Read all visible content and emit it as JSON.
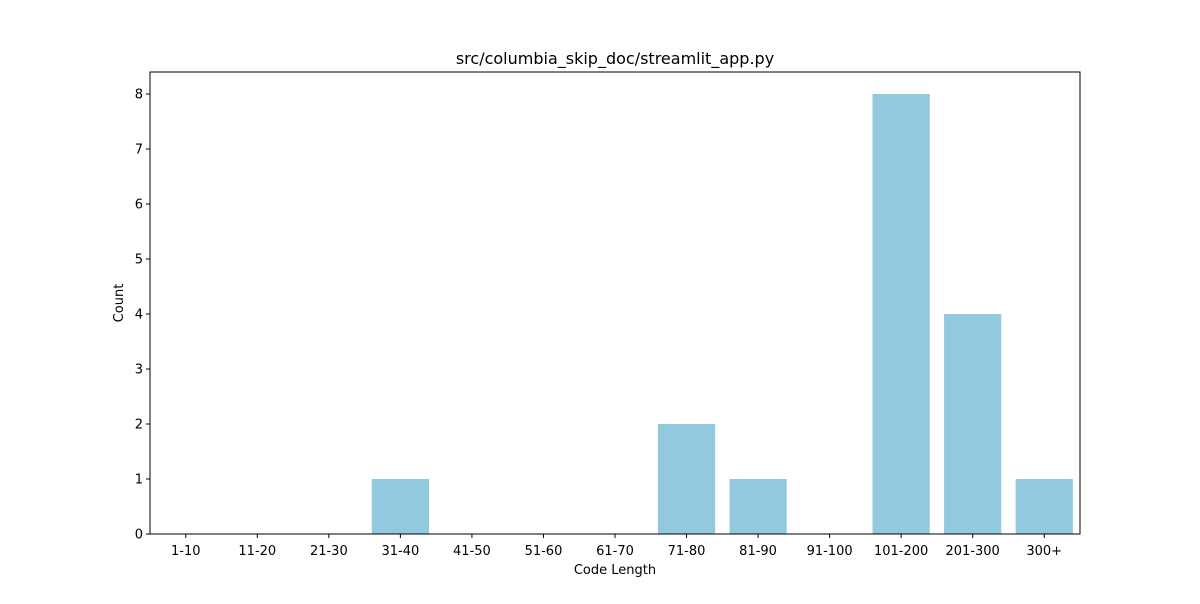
{
  "chart_data": {
    "type": "bar",
    "title": "src/columbia_skip_doc/streamlit_app.py",
    "xlabel": "Code Length",
    "ylabel": "Count",
    "categories": [
      "1-10",
      "11-20",
      "21-30",
      "31-40",
      "41-50",
      "51-60",
      "61-70",
      "71-80",
      "81-90",
      "91-100",
      "101-200",
      "201-300",
      "300+"
    ],
    "values": [
      0,
      0,
      0,
      1,
      0,
      0,
      0,
      2,
      1,
      0,
      8,
      4,
      1
    ],
    "ylim": [
      0,
      8.4
    ],
    "yticks": [
      0,
      1,
      2,
      3,
      4,
      5,
      6,
      7,
      8
    ],
    "bar_color": "#92c9df",
    "grid": false,
    "legend": "none"
  }
}
